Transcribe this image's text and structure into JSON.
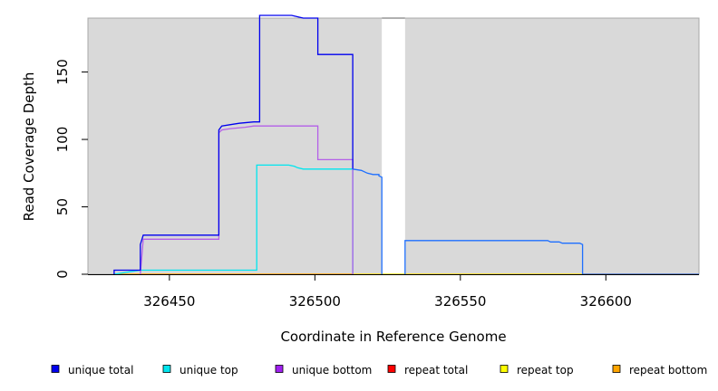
{
  "chart_data": {
    "type": "line",
    "xlabel": "Coordinate in Reference Genome",
    "ylabel": "Read Coverage Depth",
    "xlim": [
      326422,
      326632
    ],
    "ylim": [
      0,
      190
    ],
    "x_ticks": [
      326450,
      326500,
      326550,
      326600
    ],
    "y_ticks": [
      0,
      50,
      100,
      150
    ],
    "x_tick_labels": [
      "326450",
      "326500",
      "326550",
      "326600"
    ],
    "y_tick_labels": [
      "0",
      "50",
      "100",
      "150"
    ],
    "grid": false,
    "background": "#d9d9d9",
    "gaps": [
      [
        326523,
        326531
      ]
    ],
    "legend_position": "bottom",
    "series": [
      {
        "name": "repeat total",
        "color": "#ff0000",
        "points": [
          [
            326431,
            0
          ],
          [
            326632,
            0
          ]
        ]
      },
      {
        "name": "repeat top",
        "color": "#ffff00",
        "points": [
          [
            326431,
            0
          ],
          [
            326632,
            0
          ]
        ]
      },
      {
        "name": "repeat bottom",
        "color": "#ffa500",
        "points": [
          [
            326431,
            0
          ],
          [
            326513,
            0
          ]
        ]
      },
      {
        "name": "unique top",
        "color": "#00e5ee",
        "points": [
          [
            326431,
            0
          ],
          [
            326440,
            3
          ],
          [
            326480,
            3
          ],
          [
            326480,
            81
          ],
          [
            326491,
            81
          ],
          [
            326493,
            80
          ],
          [
            326494,
            79
          ],
          [
            326496,
            78
          ],
          [
            326513,
            78
          ],
          [
            326513,
            0
          ]
        ]
      },
      {
        "name": "unique bottom",
        "color": "#b45fe8",
        "points": [
          [
            326440,
            0
          ],
          [
            326441,
            26
          ],
          [
            326467,
            26
          ],
          [
            326467,
            105
          ],
          [
            326468,
            107
          ],
          [
            326471,
            108
          ],
          [
            326476,
            109
          ],
          [
            326479,
            110
          ],
          [
            326501,
            110
          ],
          [
            326501,
            85
          ],
          [
            326513,
            85
          ],
          [
            326513,
            0
          ]
        ]
      },
      {
        "name": "unique total",
        "color": "#0000ee",
        "points": [
          [
            326431,
            0
          ],
          [
            326431,
            3
          ],
          [
            326440,
            3
          ],
          [
            326440,
            22
          ],
          [
            326441,
            29
          ],
          [
            326467,
            29
          ],
          [
            326467,
            107
          ],
          [
            326468,
            110
          ],
          [
            326471,
            111
          ],
          [
            326474,
            112
          ],
          [
            326479,
            113
          ],
          [
            326481,
            113
          ],
          [
            326481,
            192
          ],
          [
            326492,
            192
          ],
          [
            326494,
            191
          ],
          [
            326496,
            190
          ],
          [
            326501,
            190
          ],
          [
            326501,
            163
          ],
          [
            326513,
            163
          ],
          [
            326513,
            78
          ]
        ]
      },
      {
        "name": "unique total",
        "color": "#1e6fff",
        "points": [
          [
            326513,
            78
          ],
          [
            326516,
            77
          ],
          [
            326518,
            75
          ],
          [
            326520,
            74
          ],
          [
            326522,
            74
          ],
          [
            326522,
            73
          ],
          [
            326523,
            72
          ],
          [
            326523,
            0
          ]
        ]
      },
      {
        "name": "unique total",
        "color": "#1e6fff",
        "points": [
          [
            326531,
            0
          ],
          [
            326531,
            25
          ],
          [
            326580,
            25
          ],
          [
            326581,
            24
          ],
          [
            326584,
            24
          ],
          [
            326585,
            23
          ],
          [
            326591,
            23
          ],
          [
            326592,
            22
          ],
          [
            326592,
            0
          ],
          [
            326632,
            0
          ]
        ]
      }
    ],
    "legend": [
      {
        "label": "unique total",
        "color": "#0000ee"
      },
      {
        "label": "unique top",
        "color": "#00e5ee"
      },
      {
        "label": "unique bottom",
        "color": "#a020f0"
      },
      {
        "label": "repeat total",
        "color": "#ff0000"
      },
      {
        "label": "repeat top",
        "color": "#ffff00"
      },
      {
        "label": "repeat bottom",
        "color": "#ffa500"
      }
    ]
  }
}
